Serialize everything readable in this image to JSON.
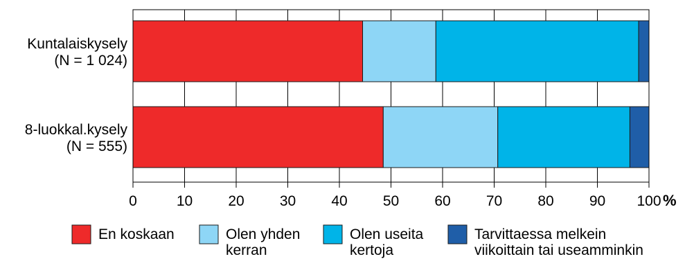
{
  "chart_data": {
    "type": "bar",
    "orientation": "horizontal",
    "stacked": true,
    "categories": [
      [
        "Kuntalaiskysely",
        "(N = 1 024)"
      ],
      [
        "8-luokkal.kysely",
        "(N = 555)"
      ]
    ],
    "series": [
      {
        "name": [
          "En koskaan"
        ],
        "color": "#ee2a2a",
        "values": [
          44.5,
          48.5
        ]
      },
      {
        "name": [
          "Olen yhden",
          "kerran"
        ],
        "color": "#8ed6f6",
        "values": [
          14.2,
          22.2
        ]
      },
      {
        "name": [
          "Olen useita",
          "kertoja"
        ],
        "color": "#00b4e8",
        "values": [
          39.3,
          25.6
        ]
      },
      {
        "name": [
          "Tarvittaessa melkein",
          "viikoittain tai useamminkin"
        ],
        "color": "#1f5ea8",
        "values": [
          2.0,
          3.7
        ]
      }
    ],
    "xlim": [
      0,
      100
    ],
    "xticks": [
      "0",
      "10",
      "20",
      "30",
      "40",
      "50",
      "60",
      "70",
      "80",
      "90",
      "100"
    ],
    "xunit": "%",
    "grid": true,
    "legend_position": "bottom"
  }
}
